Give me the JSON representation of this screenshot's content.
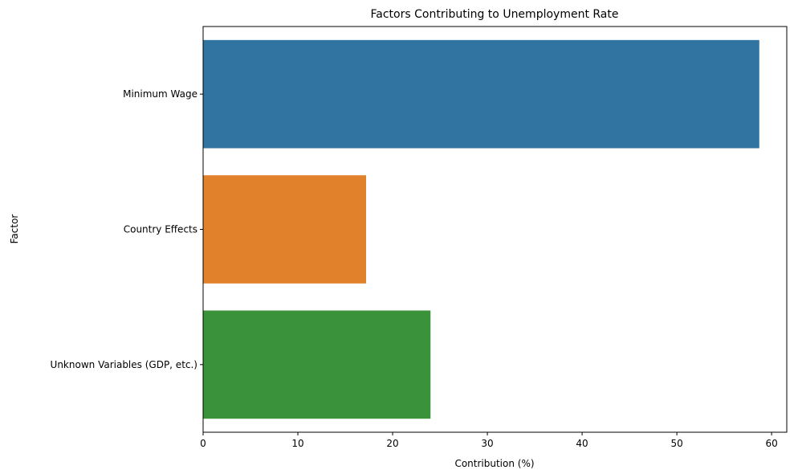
{
  "chart_data": {
    "type": "bar",
    "orientation": "horizontal",
    "title": "Factors Contributing to Unemployment Rate",
    "xlabel": "Contribution (%)",
    "ylabel": "Factor",
    "categories": [
      "Minimum Wage",
      "Country Effects",
      "Unknown Variables (GDP, etc.)"
    ],
    "values": [
      58.7,
      17.2,
      24.0
    ],
    "colors": [
      "#3274a1",
      "#e1812c",
      "#3a923a"
    ],
    "xlim": [
      0,
      61.6
    ],
    "xticks": [
      0,
      10,
      20,
      30,
      40,
      50,
      60
    ],
    "grid": false,
    "legend": "none"
  }
}
